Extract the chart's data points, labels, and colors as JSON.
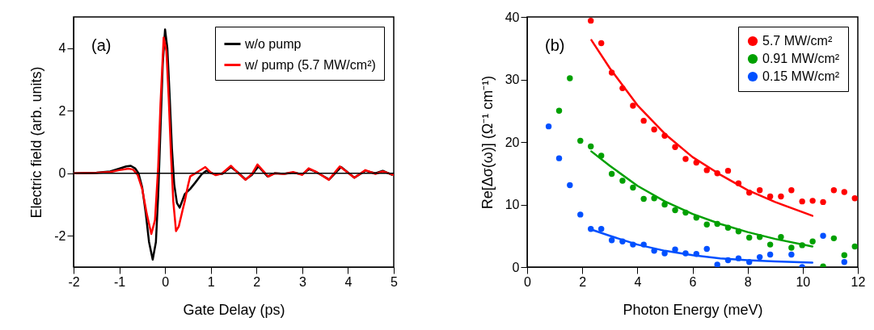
{
  "chart_data": [
    {
      "type": "line",
      "xlabel": "Gate Delay (ps)",
      "ylabel": "Electric field (arb. units)",
      "xlim": [
        -2,
        5
      ],
      "xticks": [
        -2,
        -1,
        0,
        1,
        2,
        3,
        4,
        5
      ],
      "ylim": [
        -3,
        5
      ],
      "yticks": [
        -2,
        0,
        2,
        4
      ],
      "legend": "top right",
      "annotations": [
        "(a)"
      ],
      "ref_lines": [
        {
          "axis": "y",
          "value": 0,
          "color": "#000000"
        }
      ],
      "series": [
        {
          "name": "w/o pump",
          "color": "#000000",
          "x": [
            -2,
            -1.5,
            -1.2,
            -1,
            -0.85,
            -0.75,
            -0.65,
            -0.58,
            -0.5,
            -0.42,
            -0.35,
            -0.27,
            -0.2,
            -0.15,
            -0.1,
            -0.05,
            0,
            0.05,
            0.1,
            0.15,
            0.2,
            0.26,
            0.32,
            0.43,
            0.55,
            0.66,
            0.8,
            0.9,
            1.0,
            1.1,
            1.25,
            1.44,
            1.6,
            1.76,
            1.9,
            2.04,
            2.24,
            2.4,
            2.6,
            2.8,
            3.0,
            3.15,
            3.3,
            3.59,
            3.85,
            4.14,
            4.38,
            4.6,
            4.76,
            4.96
          ],
          "values": [
            0,
            0.02,
            0.06,
            0.15,
            0.22,
            0.24,
            0.15,
            0,
            -0.45,
            -1.3,
            -2.2,
            -2.76,
            -2.2,
            -0.7,
            1.4,
            3.5,
            4.6,
            4.0,
            2.5,
            0.8,
            -0.35,
            -0.95,
            -1.1,
            -0.67,
            -0.5,
            -0.3,
            -0.03,
            0.08,
            0.02,
            -0.04,
            -0.02,
            0.2,
            0.02,
            -0.2,
            -0.05,
            0.22,
            -0.1,
            0,
            -0.02,
            0.02,
            -0.03,
            0.13,
            0.04,
            -0.2,
            0.2,
            -0.14,
            0.08,
            0,
            0.08,
            -0.05
          ]
        },
        {
          "name": "w/ pump (5.7 MW/cm²)",
          "color": "#ff0000",
          "x": [
            -2,
            -1.5,
            -1.2,
            -1,
            -0.8,
            -0.7,
            -0.6,
            -0.5,
            -0.4,
            -0.3,
            -0.22,
            -0.15,
            -0.1,
            -0.03,
            0.03,
            0.08,
            0.13,
            0.18,
            0.24,
            0.3,
            0.38,
            0.43,
            0.5,
            0.55,
            0.72,
            0.88,
            1.0,
            1.11,
            1.25,
            1.44,
            1.6,
            1.76,
            1.9,
            2.02,
            2.26,
            2.4,
            2.6,
            2.8,
            3.0,
            3.14,
            3.3,
            3.58,
            3.82,
            4.14,
            4.38,
            4.6,
            4.76,
            5
          ],
          "values": [
            0,
            0.01,
            0.04,
            0.1,
            0.15,
            0.12,
            -0.05,
            -0.5,
            -1.3,
            -1.94,
            -1.5,
            0.2,
            2.2,
            4.34,
            3.9,
            2.4,
            0.6,
            -0.9,
            -1.85,
            -1.7,
            -1.2,
            -0.9,
            -0.4,
            -0.1,
            0.05,
            0.2,
            0.02,
            -0.06,
            0,
            0.24,
            0,
            -0.21,
            -0.02,
            0.28,
            -0.11,
            0,
            -0.02,
            0.04,
            -0.05,
            0.16,
            0.05,
            -0.21,
            0.22,
            -0.14,
            0.1,
            -0.02,
            0.06,
            -0.05
          ]
        }
      ]
    },
    {
      "type": "scatter",
      "xlabel": "Photon Energy (meV)",
      "ylabel": "Re[Δσ(ω)] (Ω⁻¹ cm⁻¹)",
      "xlim": [
        0,
        12
      ],
      "xticks": [
        0,
        2,
        4,
        6,
        8,
        10,
        12
      ],
      "ylim": [
        0,
        40
      ],
      "yticks": [
        0,
        10,
        20,
        30,
        40
      ],
      "legend": "top right",
      "marker": "circle",
      "annotations": [
        "(b)"
      ],
      "series": [
        {
          "name": "5.7 MW/cm²",
          "color": "#ff0000",
          "x": [
            2.31,
            2.69,
            3.07,
            3.46,
            3.84,
            4.23,
            4.61,
            4.99,
            5.37,
            5.75,
            6.14,
            6.52,
            6.9,
            7.29,
            7.67,
            8.06,
            8.44,
            8.82,
            9.21,
            9.59,
            9.98,
            10.36,
            10.74,
            11.13,
            11.51,
            11.89
          ],
          "values": [
            39.4,
            35.8,
            31.1,
            28.6,
            25.8,
            23.4,
            22.0,
            21.0,
            19.2,
            17.3,
            16.7,
            15.5,
            15.0,
            15.4,
            13.4,
            11.9,
            12.3,
            11.3,
            11.3,
            12.3,
            10.5,
            10.6,
            10.4,
            12.3,
            12.0,
            11.0
          ]
        },
        {
          "name": "0.91 MW/cm²",
          "color": "#00a000",
          "x": [
            1.16,
            1.55,
            1.93,
            2.31,
            2.69,
            3.07,
            3.46,
            3.84,
            4.23,
            4.61,
            4.99,
            5.37,
            5.75,
            6.14,
            6.52,
            6.9,
            7.29,
            7.67,
            8.06,
            8.44,
            8.82,
            9.21,
            9.59,
            9.98,
            10.36,
            10.74,
            11.13,
            11.51,
            11.89
          ],
          "values": [
            25.0,
            30.2,
            20.2,
            19.3,
            17.8,
            14.9,
            13.8,
            12.7,
            10.9,
            11.0,
            10.0,
            9.1,
            8.7,
            7.9,
            6.8,
            6.9,
            6.3,
            5.7,
            4.7,
            4.8,
            3.6,
            4.8,
            3.1,
            3.5,
            4.1,
            0.1,
            4.6,
            1.9,
            3.3
          ]
        },
        {
          "name": "0.15 MW/cm²",
          "color": "#0050ff",
          "x": [
            0.78,
            1.16,
            1.55,
            1.93,
            2.31,
            2.69,
            3.07,
            3.46,
            3.84,
            4.23,
            4.61,
            4.99,
            5.37,
            5.75,
            6.14,
            6.52,
            6.9,
            7.29,
            7.67,
            8.06,
            8.44,
            8.82,
            9.59,
            9.98,
            10.74,
            11.51
          ],
          "values": [
            22.5,
            17.4,
            13.1,
            8.4,
            6.1,
            6.1,
            4.3,
            4.1,
            3.6,
            3.6,
            2.6,
            2.2,
            2.8,
            2.2,
            2.1,
            2.9,
            0.4,
            1.1,
            1.4,
            0.8,
            1.6,
            2.0,
            2.0,
            0.0,
            5.0,
            0.8
          ]
        },
        {
          "type": "line",
          "marker": "none",
          "color": "#ff0000",
          "x": [
            2.33,
            3,
            4,
            5,
            6,
            7,
            8,
            9,
            10.35
          ],
          "values": [
            36.3,
            31.8,
            25.9,
            21.3,
            17.6,
            14.8,
            12.3,
            10.4,
            8.2
          ]
        },
        {
          "type": "line",
          "marker": "none",
          "color": "#00a000",
          "x": [
            2.33,
            3,
            4,
            5,
            6,
            7,
            8,
            9,
            10.35
          ],
          "values": [
            18.5,
            16.2,
            13.0,
            10.5,
            8.5,
            6.9,
            5.6,
            4.5,
            3.3
          ]
        },
        {
          "type": "line",
          "marker": "none",
          "color": "#0050ff",
          "x": [
            2.33,
            3,
            4,
            5,
            6,
            7,
            8,
            9,
            10.35
          ],
          "values": [
            6.0,
            5.0,
            3.6,
            2.6,
            1.9,
            1.4,
            1.1,
            0.9,
            0.7
          ]
        }
      ]
    }
  ]
}
